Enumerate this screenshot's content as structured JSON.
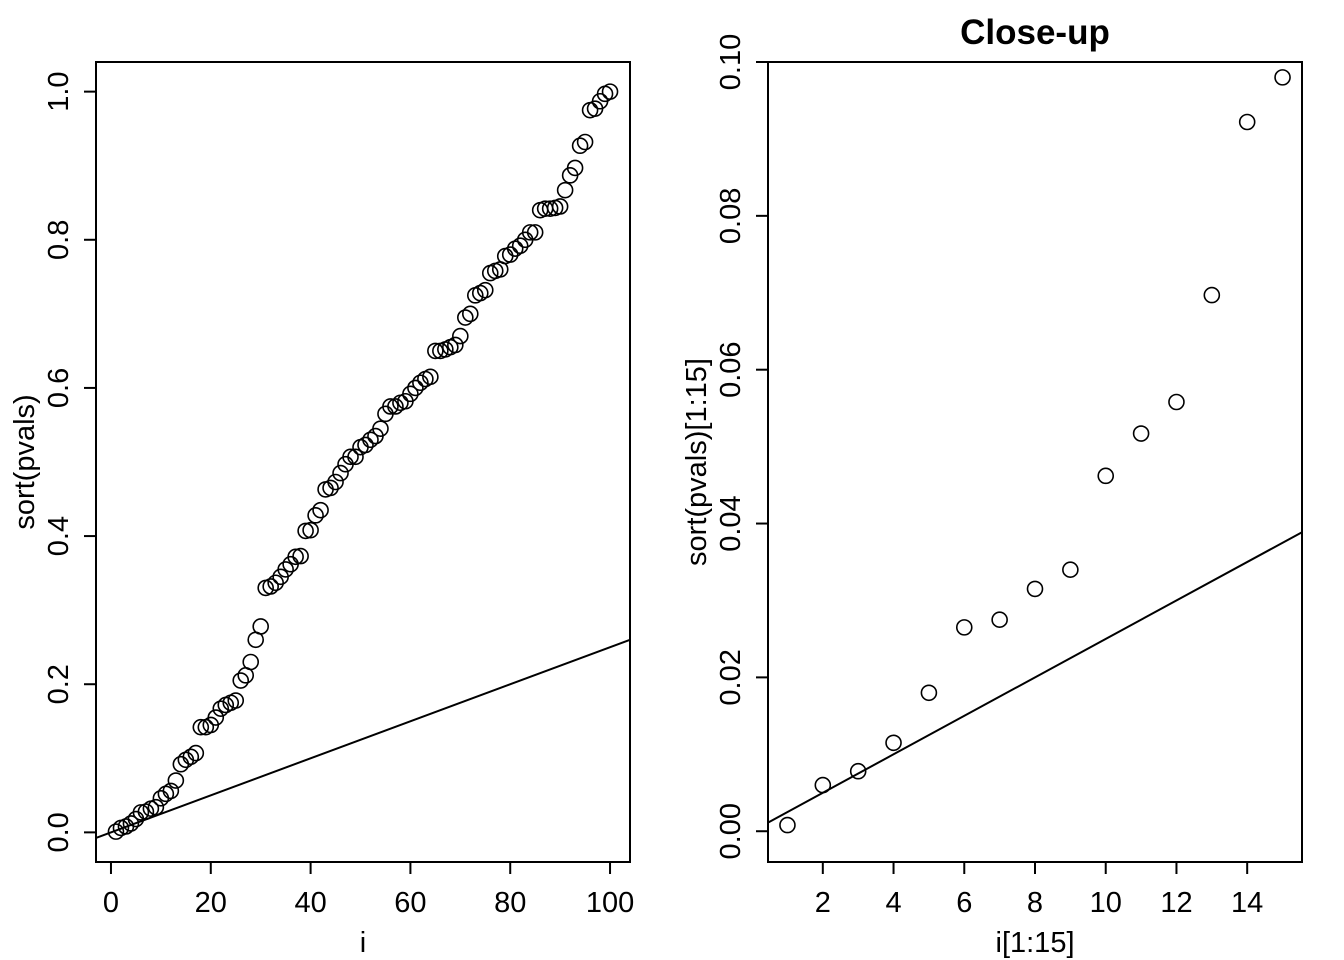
{
  "chart_data": [
    {
      "type": "scatter",
      "title": "",
      "xlabel": "i",
      "ylabel": "sort(pvals)",
      "xlim": [
        -3,
        104
      ],
      "ylim": [
        -0.04,
        1.04
      ],
      "xticks": [
        0,
        20,
        40,
        60,
        80,
        100
      ],
      "yticks": [
        0.0,
        0.2,
        0.4,
        0.6,
        0.8,
        1.0
      ],
      "xtick_labels": [
        "0",
        "20",
        "40",
        "60",
        "80",
        "100"
      ],
      "ytick_labels": [
        "0.0",
        "0.2",
        "0.4",
        "0.6",
        "0.8",
        "1.0"
      ],
      "grid": false,
      "reference_line": {
        "intercept": 0,
        "slope": 0.0025
      },
      "x": [
        1,
        2,
        3,
        4,
        5,
        6,
        7,
        8,
        9,
        10,
        11,
        12,
        13,
        14,
        15,
        16,
        17,
        18,
        19,
        20,
        21,
        22,
        23,
        24,
        25,
        26,
        27,
        28,
        29,
        30,
        31,
        32,
        33,
        34,
        35,
        36,
        37,
        38,
        39,
        40,
        41,
        42,
        43,
        44,
        45,
        46,
        47,
        48,
        49,
        50,
        51,
        52,
        53,
        54,
        55,
        56,
        57,
        58,
        59,
        60,
        61,
        62,
        63,
        64,
        65,
        66,
        67,
        68,
        69,
        70,
        71,
        72,
        73,
        74,
        75,
        76,
        77,
        78,
        79,
        80,
        81,
        82,
        83,
        84,
        85,
        86,
        87,
        88,
        89,
        90,
        91,
        92,
        93,
        94,
        95,
        96,
        97,
        98,
        99,
        100
      ],
      "y": [
        0.001,
        0.006,
        0.008,
        0.012,
        0.018,
        0.027,
        0.028,
        0.032,
        0.034,
        0.046,
        0.052,
        0.056,
        0.07,
        0.092,
        0.098,
        0.102,
        0.107,
        0.142,
        0.142,
        0.145,
        0.155,
        0.167,
        0.172,
        0.175,
        0.178,
        0.205,
        0.212,
        0.23,
        0.26,
        0.278,
        0.33,
        0.332,
        0.337,
        0.345,
        0.355,
        0.362,
        0.372,
        0.373,
        0.407,
        0.408,
        0.428,
        0.435,
        0.463,
        0.465,
        0.473,
        0.485,
        0.497,
        0.507,
        0.507,
        0.52,
        0.523,
        0.53,
        0.535,
        0.545,
        0.565,
        0.575,
        0.575,
        0.58,
        0.582,
        0.592,
        0.6,
        0.607,
        0.612,
        0.615,
        0.65,
        0.65,
        0.652,
        0.655,
        0.658,
        0.67,
        0.695,
        0.7,
        0.725,
        0.728,
        0.732,
        0.755,
        0.758,
        0.76,
        0.778,
        0.78,
        0.788,
        0.792,
        0.8,
        0.81,
        0.81,
        0.84,
        0.842,
        0.842,
        0.843,
        0.845,
        0.867,
        0.887,
        0.897,
        0.927,
        0.932,
        0.975,
        0.977,
        0.987,
        0.997,
        1.0
      ]
    },
    {
      "type": "scatter",
      "title": "Close-up",
      "xlabel": "i[1:15]",
      "ylabel": "sort(pvals)[1:15]",
      "xlim": [
        0.45,
        15.55
      ],
      "ylim": [
        -0.004,
        0.1
      ],
      "xticks": [
        2,
        4,
        6,
        8,
        10,
        12,
        14
      ],
      "yticks": [
        0.0,
        0.02,
        0.04,
        0.06,
        0.08,
        0.1
      ],
      "xtick_labels": [
        "2",
        "4",
        "6",
        "8",
        "10",
        "12",
        "14"
      ],
      "ytick_labels": [
        "0.00",
        "0.02",
        "0.04",
        "0.06",
        "0.08",
        "0.10"
      ],
      "grid": false,
      "reference_line": {
        "intercept": 0,
        "slope": 0.0025
      },
      "x": [
        1,
        2,
        3,
        4,
        5,
        6,
        7,
        8,
        9,
        10,
        11,
        12,
        13,
        14,
        15
      ],
      "y": [
        0.0008,
        0.006,
        0.0078,
        0.0115,
        0.018,
        0.0265,
        0.0275,
        0.0315,
        0.034,
        0.0462,
        0.0517,
        0.0558,
        0.0697,
        0.0922,
        0.098
      ]
    }
  ]
}
